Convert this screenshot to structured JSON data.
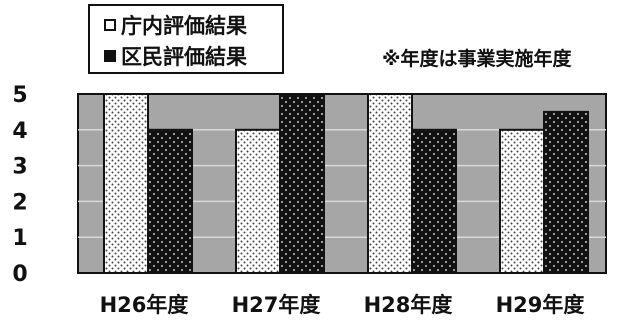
{
  "chart_data": {
    "type": "bar",
    "categories": [
      "H26年度",
      "H27年度",
      "H28年度",
      "H29年度"
    ],
    "series": [
      {
        "name": "庁内評価結果",
        "values": [
          5,
          4,
          5,
          4
        ]
      },
      {
        "name": "区民評価結果",
        "values": [
          4,
          5,
          4,
          4.5
        ]
      }
    ],
    "ylim": [
      0,
      5
    ],
    "yticks": [
      "0",
      "1",
      "2",
      "3",
      "4",
      "5"
    ],
    "grid": true,
    "legend_position": "top-left",
    "note": "※年度は事業実施年度",
    "colors": {
      "plot_bg": "#a6a6a6",
      "grid": "#d9d9d9",
      "series0_fill": "#ffffff",
      "series1_fill": "#111111",
      "axis": "#111111"
    }
  }
}
